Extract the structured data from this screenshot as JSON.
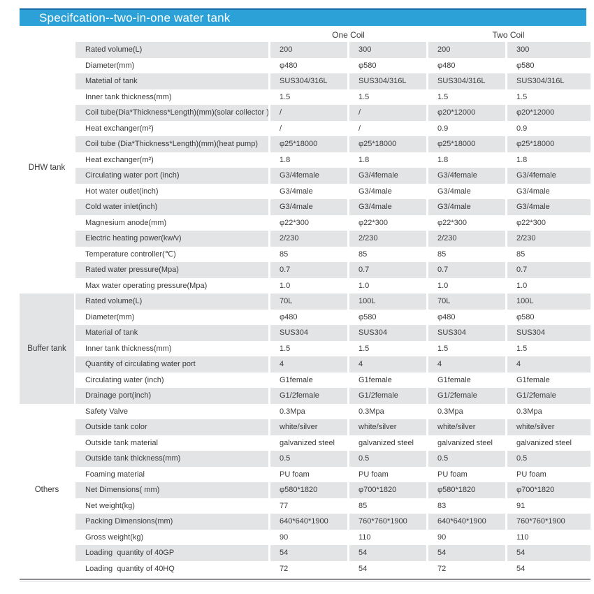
{
  "title": "Specifcation--two-in-one water tank",
  "coil_headers": {
    "one": "One Coil",
    "two": "Two Coil"
  },
  "colors": {
    "accent": "#2ba1d7",
    "accent_dark": "#1b6fa8",
    "stripe": "#e3e4e6"
  },
  "sections": [
    {
      "group": "DHW tank",
      "highlight": false,
      "rows": [
        {
          "label": "Rated volume(L)",
          "values": [
            "200",
            "300",
            "200",
            "300"
          ]
        },
        {
          "label": "Diameter(mm)",
          "values": [
            "φ480",
            "φ580",
            "φ480",
            "φ580"
          ]
        },
        {
          "label": "Matetial of tank",
          "values": [
            "SUS304/316L",
            "SUS304/316L",
            "SUS304/316L",
            "SUS304/316L"
          ]
        },
        {
          "label": "Inner tank thickness(mm)",
          "values": [
            "1.5",
            "1.5",
            "1.5",
            "1.5"
          ]
        },
        {
          "label": "Coil tube(Dia*Thickness*Length)(mm)(solar collector )",
          "values": [
            "/",
            "/",
            "φ20*12000",
            "φ20*12000"
          ]
        },
        {
          "label": "Heat exchanger(m²)",
          "values": [
            "/",
            "/",
            "0.9",
            "0.9"
          ]
        },
        {
          "label": "Coil tube (Dia*Thickness*Length)(mm)(heat pump)",
          "values": [
            "φ25*18000",
            "φ25*18000",
            "φ25*18000",
            "φ25*18000"
          ]
        },
        {
          "label": "Heat exchanger(m²)",
          "values": [
            "1.8",
            "1.8",
            "1.8",
            "1.8"
          ]
        },
        {
          "label": "Circulating water port (inch)",
          "values": [
            "G3/4female",
            "G3/4female",
            "G3/4female",
            "G3/4female"
          ]
        },
        {
          "label": "Hot water outlet(inch)",
          "values": [
            "G3/4male",
            "G3/4male",
            "G3/4male",
            "G3/4male"
          ]
        },
        {
          "label": "Cold water inlet(inch)",
          "values": [
            "G3/4male",
            "G3/4male",
            "G3/4male",
            "G3/4male"
          ]
        },
        {
          "label": "Magnesium anode(mm)",
          "values": [
            "φ22*300",
            "φ22*300",
            "φ22*300",
            "φ22*300"
          ]
        },
        {
          "label": "Electric heating power(kw/v)",
          "values": [
            "2/230",
            "2/230",
            "2/230",
            "2/230"
          ]
        },
        {
          "label": "Temperature controller(℃)",
          "values": [
            "85",
            "85",
            "85",
            "85"
          ]
        },
        {
          "label": "Rated water pressure(Mpa)",
          "values": [
            "0.7",
            "0.7",
            "0.7",
            "0.7"
          ]
        },
        {
          "label": "Max water operating pressure(Mpa)",
          "values": [
            "1.0",
            "1.0",
            "1.0",
            "1.0"
          ]
        }
      ]
    },
    {
      "group": "Buffer tank",
      "highlight": true,
      "rows": [
        {
          "label": "Rated volume(L)",
          "values": [
            "70L",
            "100L",
            "70L",
            "100L"
          ]
        },
        {
          "label": "Diameter(mm)",
          "values": [
            "φ480",
            "φ580",
            "φ480",
            "φ580"
          ]
        },
        {
          "label": "Material of tank",
          "values": [
            "SUS304",
            "SUS304",
            "SUS304",
            "SUS304"
          ]
        },
        {
          "label": "Inner tank thickness(mm)",
          "values": [
            "1.5",
            "1.5",
            "1.5",
            "1.5"
          ]
        },
        {
          "label": "Quantity of circulating water port",
          "values": [
            "4",
            "4",
            "4",
            "4"
          ]
        },
        {
          "label": "Circulating water (inch)",
          "values": [
            "G1female",
            "G1female",
            "G1female",
            "G1female"
          ]
        },
        {
          "label": "Drainage port(inch)",
          "values": [
            "G1/2female",
            "G1/2female",
            "G1/2female",
            "G1/2female"
          ]
        }
      ]
    },
    {
      "group": "Others",
      "highlight": false,
      "rows": [
        {
          "label": "Safety Valve",
          "values": [
            "0.3Mpa",
            "0.3Mpa",
            "0.3Mpa",
            "0.3Mpa"
          ]
        },
        {
          "label": "Outside tank color",
          "values": [
            "white/silver",
            "white/silver",
            "white/silver",
            "white/silver"
          ]
        },
        {
          "label": "Outside tank material",
          "values": [
            "galvanized steel",
            "galvanized steel",
            "galvanized steel",
            "galvanized steel"
          ]
        },
        {
          "label": "Outside tank thickness(mm)",
          "values": [
            "0.5",
            "0.5",
            "0.5",
            "0.5"
          ]
        },
        {
          "label": "Foaming material",
          "values": [
            "PU foam",
            "PU foam",
            "PU foam",
            "PU foam"
          ]
        },
        {
          "label": "Net Dimensions( mm)",
          "values": [
            "φ580*1820",
            "φ700*1820",
            "φ580*1820",
            "φ700*1820"
          ]
        },
        {
          "label": "Net weight(kg)",
          "values": [
            "77",
            "85",
            "83",
            "91"
          ]
        },
        {
          "label": "Packing Dimensions(mm)",
          "values": [
            "640*640*1900",
            "760*760*1900",
            "640*640*1900",
            "760*760*1900"
          ]
        },
        {
          "label": "Gross weight(kg)",
          "values": [
            "90",
            "110",
            "90",
            "110"
          ]
        },
        {
          "label": "Loading  quantity of 40GP",
          "values": [
            "54",
            "54",
            "54",
            "54"
          ]
        },
        {
          "label": "Loading  quantity of 40HQ",
          "values": [
            "72",
            "54",
            "72",
            "54"
          ]
        }
      ]
    }
  ]
}
